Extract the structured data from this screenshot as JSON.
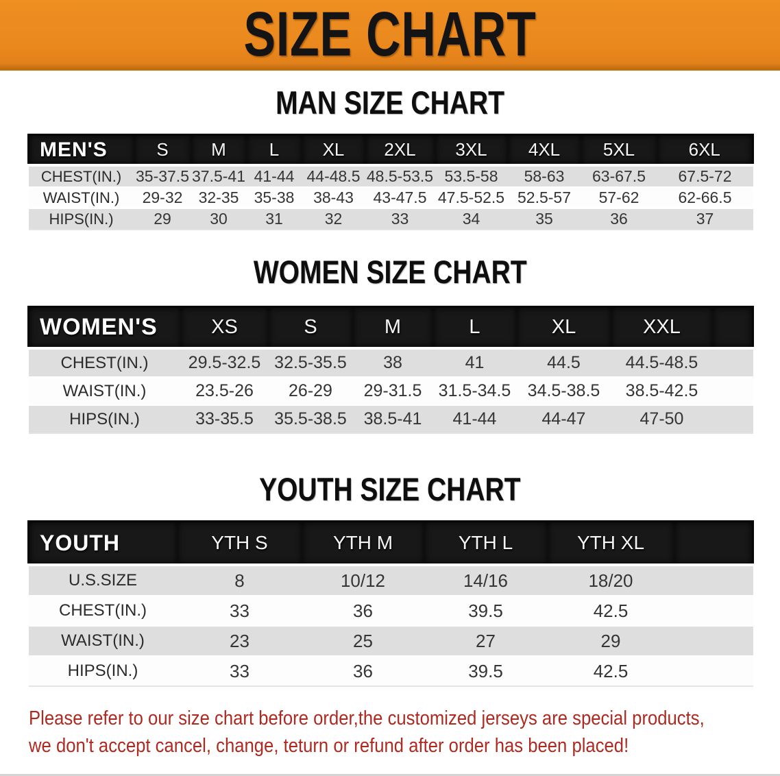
{
  "banner": {
    "title": "SIZE CHART"
  },
  "colors": {
    "banner_orange": "#EA881D",
    "banner_edge": "#C06E12",
    "header_black": "#181818",
    "row_gray": "#DEDEDE",
    "row_white": "#FDFDFD",
    "disclaimer_red": "#AE2A21",
    "title_black": "#0E0E0E"
  },
  "sections": [
    {
      "id": "man",
      "title": "MAN SIZE CHART",
      "header_label": "MEN'S",
      "columns": [
        "S",
        "M",
        "L",
        "XL",
        "2XL",
        "3XL",
        "4XL",
        "5XL",
        "6XL"
      ],
      "rows": [
        {
          "label": "CHEST(IN.)",
          "values": [
            "35-37.5",
            "37.5-41",
            "41-44",
            "44-48.5",
            "48.5-53.5",
            "53.5-58",
            "58-63",
            "63-67.5",
            "67.5-72"
          ]
        },
        {
          "label": "WAIST(IN.)",
          "values": [
            "29-32",
            "32-35",
            "35-38",
            "38-43",
            "43-47.5",
            "47.5-52.5",
            "52.5-57",
            "57-62",
            "62-66.5"
          ]
        },
        {
          "label": "HIPS(IN.)",
          "values": [
            "29",
            "30",
            "31",
            "32",
            "33",
            "34",
            "35",
            "36",
            "37"
          ]
        }
      ]
    },
    {
      "id": "women",
      "title": "WOMEN SIZE CHART",
      "header_label": "WOMEN'S",
      "columns": [
        "XS",
        "S",
        "M",
        "L",
        "XL",
        "XXL"
      ],
      "rows": [
        {
          "label": "CHEST(IN.)",
          "values": [
            "29.5-32.5",
            "32.5-35.5",
            "38",
            "41",
            "44.5",
            "44.5-48.5"
          ]
        },
        {
          "label": "WAIST(IN.)",
          "values": [
            "23.5-26",
            "26-29",
            "29-31.5",
            "31.5-34.5",
            "34.5-38.5",
            "38.5-42.5"
          ]
        },
        {
          "label": "HIPS(IN.)",
          "values": [
            "33-35.5",
            "35.5-38.5",
            "38.5-41",
            "41-44",
            "44-47",
            "47-50"
          ]
        }
      ]
    },
    {
      "id": "youth",
      "title": "YOUTH SIZE CHART",
      "header_label": "YOUTH",
      "columns": [
        "YTH S",
        "YTH M",
        "YTH L",
        "YTH XL"
      ],
      "rows": [
        {
          "label": "U.S.SIZE",
          "values": [
            "8",
            "10/12",
            "14/16",
            "18/20"
          ]
        },
        {
          "label": "CHEST(IN.)",
          "values": [
            "33",
            "36",
            "39.5",
            "42.5"
          ]
        },
        {
          "label": "WAIST(IN.)",
          "values": [
            "23",
            "25",
            "27",
            "29"
          ]
        },
        {
          "label": "HIPS(IN.)",
          "values": [
            "33",
            "36",
            "39.5",
            "42.5"
          ]
        }
      ]
    }
  ],
  "disclaimer": {
    "line1": "Please refer to our size chart before order,the customized jerseys are special products,",
    "line2": "we don't accept cancel, change, teturn or refund after order has been placed!"
  }
}
